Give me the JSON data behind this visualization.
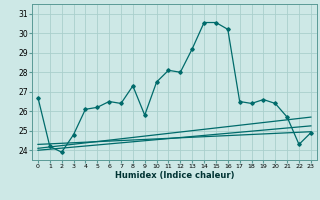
{
  "xlabel": "Humidex (Indice chaleur)",
  "bg_color": "#cde8e6",
  "grid_color": "#aacfcc",
  "line_color": "#006b6b",
  "spine_color": "#5a9a96",
  "xlim": [
    -0.5,
    23.5
  ],
  "ylim": [
    23.5,
    31.5
  ],
  "yticks": [
    24,
    25,
    26,
    27,
    28,
    29,
    30,
    31
  ],
  "xticks": [
    0,
    1,
    2,
    3,
    4,
    5,
    6,
    7,
    8,
    9,
    10,
    11,
    12,
    13,
    14,
    15,
    16,
    17,
    18,
    19,
    20,
    21,
    22,
    23
  ],
  "main_line_x": [
    0,
    1,
    2,
    3,
    4,
    5,
    6,
    7,
    8,
    9,
    10,
    11,
    12,
    13,
    14,
    15,
    16,
    17,
    18,
    19,
    20,
    21,
    22,
    23
  ],
  "main_line_y": [
    26.7,
    24.2,
    23.9,
    24.8,
    26.1,
    26.2,
    26.5,
    26.4,
    27.3,
    25.8,
    27.5,
    28.1,
    28.0,
    29.2,
    30.55,
    30.55,
    30.2,
    26.5,
    26.4,
    26.6,
    26.4,
    25.7,
    24.3,
    24.9
  ],
  "line2_x": [
    0,
    23
  ],
  "line2_y": [
    24.0,
    25.25
  ],
  "line3_x": [
    0,
    23
  ],
  "line3_y": [
    24.1,
    25.7
  ],
  "line4_x": [
    0,
    23
  ],
  "line4_y": [
    24.3,
    24.95
  ]
}
